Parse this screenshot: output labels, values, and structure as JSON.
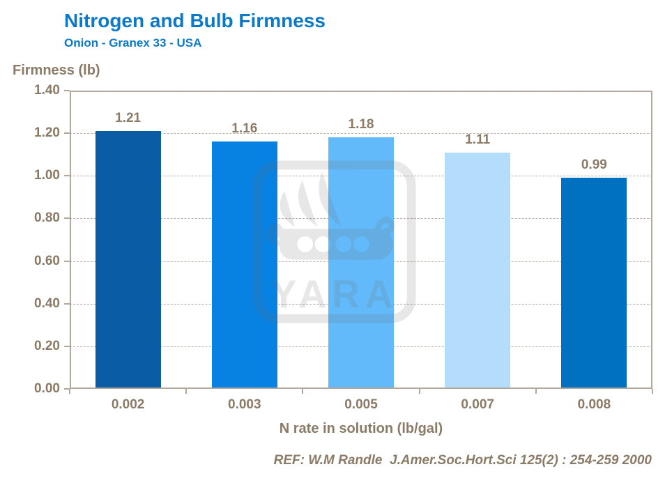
{
  "header": {
    "title": "Nitrogen and Bulb Firmness",
    "subtitle": "Onion - Granex 33 - USA"
  },
  "chart_data": {
    "type": "bar",
    "title": "Nitrogen and Bulb Firmness",
    "subtitle": "Onion - Granex 33 - USA",
    "categories": [
      "0.002",
      "0.003",
      "0.005",
      "0.007",
      "0.008"
    ],
    "values": [
      1.21,
      1.16,
      1.18,
      1.11,
      0.99
    ],
    "value_labels": [
      "1.21",
      "1.16",
      "1.18",
      "1.11",
      "0.99"
    ],
    "bar_colors": [
      "#0a5ca5",
      "#0781e2",
      "#63bafb",
      "#b4ddfb",
      "#0071c1"
    ],
    "xlabel": "N rate in solution (lb/gal)",
    "ylabel": "Firmness (lb)",
    "ylim": [
      0,
      1.4
    ],
    "ytick_step": 0.2,
    "ytick_labels": [
      "0.00",
      "0.20",
      "0.40",
      "0.60",
      "0.80",
      "1.00",
      "1.20",
      "1.40"
    ],
    "grid": "horizontal dashed",
    "legend": "none"
  },
  "footer": {
    "reference": "REF: W.M Randle  J.Amer.Soc.Hort.Sci 125(2) : 254-259 2000"
  },
  "watermark": {
    "name": "yara-logo",
    "text": "YARA",
    "color": "#6e6e6e",
    "opacity": 0.16
  },
  "colors": {
    "title_blue": "#0b79c7",
    "axis_text": "#8a7a66",
    "frame": "#b2a79a"
  }
}
